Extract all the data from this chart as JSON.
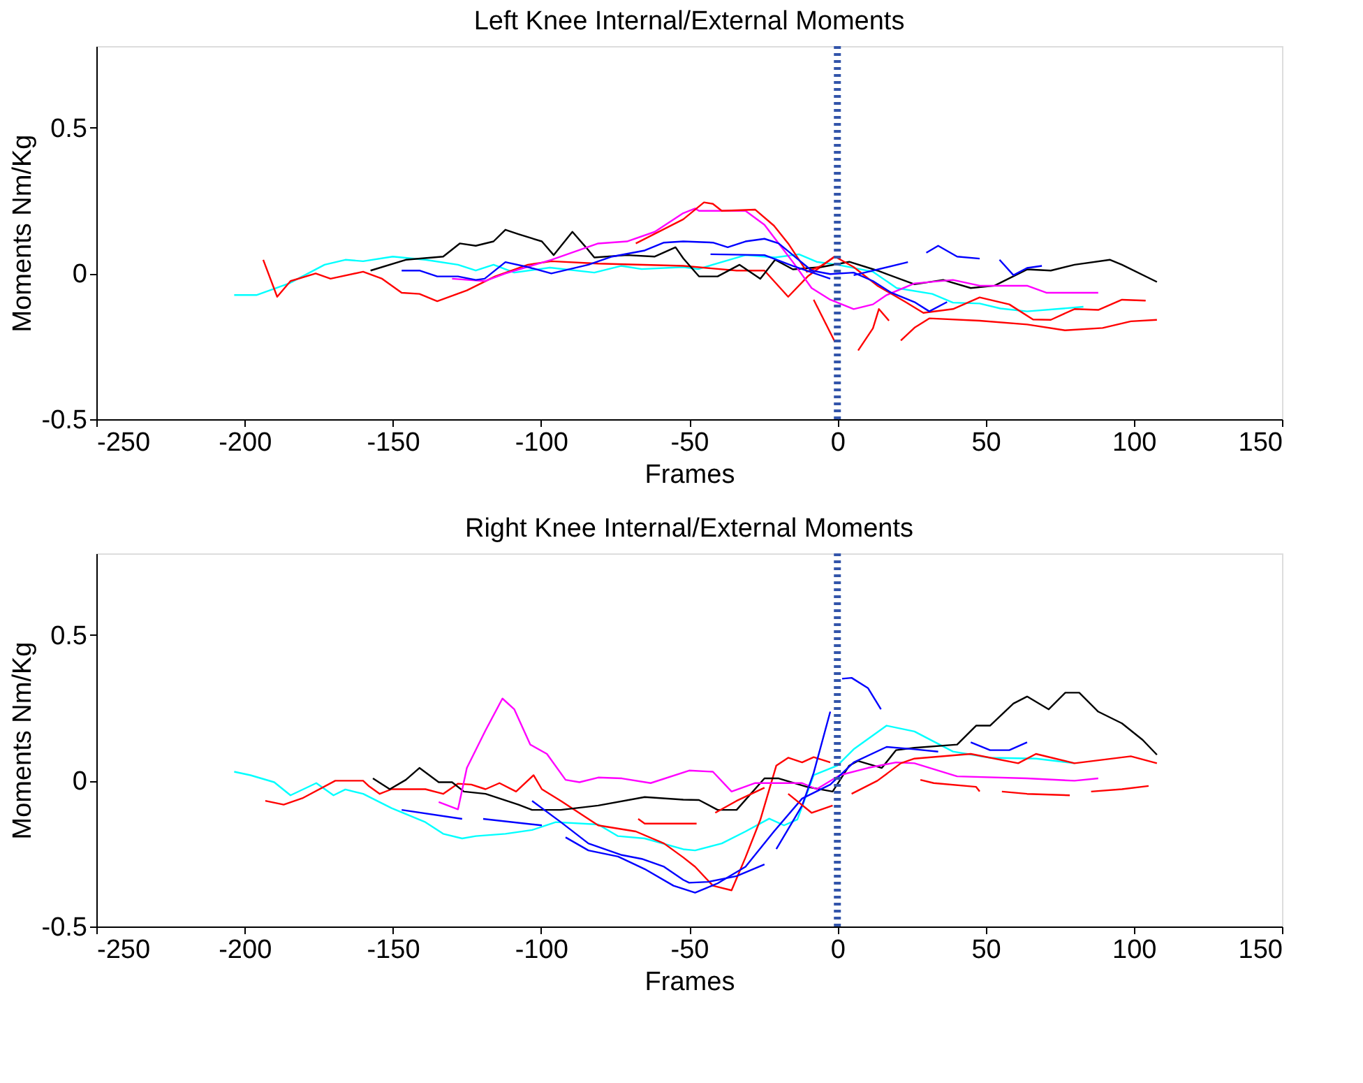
{
  "chart_data": [
    {
      "type": "line",
      "title": "Left Knee   Internal/External Moments",
      "xlabel": "Frames",
      "ylabel": "Moments Nm/Kg",
      "xlim": [
        -250,
        150
      ],
      "xticks": [
        -250,
        -200,
        -150,
        -100,
        -50,
        0,
        50,
        100,
        150
      ],
      "ylim": [
        -0.5,
        0.78
      ],
      "yticks": [
        -0.5,
        0,
        0.5
      ],
      "grid": false,
      "marker": "none",
      "line_style": "solid",
      "ref_lines": [
        {
          "axis": "x",
          "value": 0,
          "color": "#3355aa",
          "line_style": "dotted"
        }
      ],
      "series": [
        {
          "color": "#00ffff",
          "x": [
            -203.5,
            -196,
            -185,
            -173,
            -166,
            -160,
            -150,
            -139,
            -128,
            -122,
            -116,
            -109,
            -97,
            -82,
            -73,
            -66,
            -52,
            -47,
            -31,
            -21,
            -13,
            -7,
            0,
            12,
            20,
            32,
            39,
            48,
            55,
            64,
            74,
            83
          ],
          "values": [
            -0.074,
            -0.074,
            -0.034,
            0.03,
            0.047,
            0.042,
            0.058,
            0.047,
            0.03,
            0.01,
            0.03,
            0.003,
            0.02,
            0.003,
            0.026,
            0.015,
            0.022,
            0.015,
            0.063,
            0.055,
            0.066,
            0.04,
            0.03,
            0.006,
            -0.05,
            -0.07,
            -0.1,
            -0.103,
            -0.12,
            -0.13,
            -0.122,
            -0.114
          ]
        },
        {
          "color": "#ff0000",
          "x": [
            -193.7,
            -189,
            -184.5,
            -176,
            -171,
            -160,
            -153.6,
            -147,
            -141,
            -135,
            -125,
            -115.5,
            -104.4,
            -96.5,
            -80.7,
            -52,
            -34,
            -24.6,
            -16.6,
            -10,
            -1
          ],
          "values": [
            0.047,
            -0.08,
            -0.026,
            0,
            -0.018,
            0.006,
            -0.018,
            -0.066,
            -0.07,
            -0.095,
            -0.058,
            -0.01,
            0.03,
            0.042,
            0.034,
            0.026,
            0.01,
            0.01,
            -0.08,
            -0.01,
            0.058
          ]
        },
        {
          "color": "#000000",
          "x": [
            -157.5,
            -145.6,
            -133,
            -127.4,
            -122,
            -116,
            -112,
            -107.6,
            -99.7,
            -95.7,
            -89.4,
            -84.6,
            -82,
            -71,
            -61.6,
            -54.6,
            -52,
            -46.7,
            -40.4,
            -33,
            -26,
            -21,
            -15,
            -5.5,
            4,
            13.5,
            26,
            35.7,
            45,
            53,
            64,
            72,
            80,
            92,
            96,
            107.8
          ],
          "values": [
            0.01,
            0.047,
            0.058,
            0.103,
            0.095,
            0.11,
            0.15,
            0.135,
            0.11,
            0.063,
            0.143,
            0.087,
            0.055,
            0.063,
            0.058,
            0.09,
            0.052,
            -0.01,
            -0.01,
            0.03,
            -0.018,
            0.047,
            0.014,
            0.022,
            0.04,
            0.01,
            -0.037,
            -0.022,
            -0.05,
            -0.042,
            0.014,
            0.01,
            0.03,
            0.047,
            0.03,
            -0.029
          ]
        },
        {
          "color": "#ff00ff",
          "x": [
            -130,
            -119,
            -112,
            -96.5,
            -80.7,
            -71,
            -61.6,
            -52,
            -48,
            -46.7,
            -31,
            -24.6,
            -19.8,
            -15,
            -8.7,
            -2.4,
            5.5,
            12,
            16.6,
            26,
            39,
            48,
            64,
            70.5,
            88
          ],
          "values": [
            -0.018,
            -0.026,
            0,
            0.047,
            0.103,
            0.11,
            0.143,
            0.207,
            0.223,
            0.215,
            0.215,
            0.167,
            0.103,
            0.039,
            -0.05,
            -0.09,
            -0.122,
            -0.106,
            -0.074,
            -0.034,
            -0.022,
            -0.042,
            -0.042,
            -0.066,
            -0.066
          ]
        },
        {
          "color": "#ff0000",
          "x": [
            -68,
            -52,
            -45,
            -42,
            -39,
            -27.7,
            -21.4,
            -16.6,
            -10.3,
            -5.5,
            -0.8,
            5.5,
            13.5,
            23,
            29,
            39,
            48,
            58,
            66,
            72,
            80,
            88,
            96,
            104
          ],
          "values": [
            0.103,
            0.186,
            0.244,
            0.239,
            0.215,
            0.219,
            0.164,
            0.103,
            0.006,
            0.026,
            0.058,
            0.022,
            -0.042,
            -0.098,
            -0.135,
            -0.122,
            -0.082,
            -0.106,
            -0.158,
            -0.159,
            -0.122,
            -0.125,
            -0.09,
            -0.093
          ]
        },
        {
          "color": "#ff0000",
          "x": [
            21.4,
            26,
            31,
            48,
            64,
            76.8,
            89.5,
            99,
            107.8
          ],
          "values": [
            -0.23,
            -0.186,
            -0.154,
            -0.162,
            -0.175,
            -0.195,
            -0.187,
            -0.164,
            -0.159
          ]
        },
        {
          "color": "#ff0000",
          "x": [
            -8,
            -0.8
          ],
          "values": [
            -0.09,
            -0.235
          ]
        },
        {
          "color": "#ff0000",
          "x": [
            7,
            12,
            14,
            17.4
          ],
          "values": [
            -0.264,
            -0.188,
            -0.122,
            -0.162
          ]
        },
        {
          "color": "#0000ff",
          "x": [
            -147,
            -141,
            -135,
            -128,
            -122,
            -119,
            -112,
            -104.4,
            -96.5,
            -84,
            -76,
            -65,
            -58.5,
            -52,
            -42,
            -37,
            -31,
            -24.6,
            -19.8,
            -15,
            -8.7,
            -2.4,
            5.5,
            12,
            18.2,
            26,
            31,
            37
          ],
          "values": [
            0.01,
            0.01,
            -0.01,
            -0.01,
            -0.022,
            -0.018,
            0.039,
            0.022,
            0,
            0.03,
            0.058,
            0.079,
            0.106,
            0.11,
            0.106,
            0.09,
            0.11,
            0.119,
            0.103,
            0.063,
            0.01,
            -0.002,
            0.003,
            -0.026,
            -0.066,
            -0.098,
            -0.13,
            -0.098
          ]
        },
        {
          "color": "#0000ff",
          "x": [
            -42.8,
            -24.6,
            -15,
            -2.4
          ],
          "values": [
            0.066,
            0.063,
            0.026,
            -0.018
          ]
        },
        {
          "color": "#0000ff",
          "x": [
            5.5,
            23.8
          ],
          "values": [
            -0.006,
            0.039
          ]
        },
        {
          "color": "#0000ff",
          "x": [
            30,
            34,
            40.4,
            48
          ],
          "values": [
            0.071,
            0.095,
            0.058,
            0.051
          ]
        },
        {
          "color": "#0000ff",
          "x": [
            54.7,
            59.4,
            64,
            69
          ],
          "values": [
            0.047,
            -0.006,
            0.019,
            0.026
          ]
        }
      ]
    },
    {
      "type": "line",
      "title": "Right Knee   Internal/External Moments",
      "xlabel": "Frames",
      "ylabel": "Moments Nm/Kg",
      "xlim": [
        -250,
        150
      ],
      "xticks": [
        -250,
        -200,
        -150,
        -100,
        -50,
        0,
        50,
        100,
        150
      ],
      "ylim": [
        -0.5,
        0.78
      ],
      "yticks": [
        -0.5,
        0,
        0.5
      ],
      "grid": false,
      "marker": "none",
      "line_style": "solid",
      "ref_lines": [
        {
          "axis": "x",
          "value": 0,
          "color": "#3355aa",
          "line_style": "dotted"
        }
      ],
      "series": [
        {
          "color": "#00ffff",
          "x": [
            -203.5,
            -198,
            -190,
            -184.5,
            -175.8,
            -170,
            -166,
            -160,
            -150.4,
            -139,
            -133,
            -126.6,
            -122,
            -112,
            -103,
            -95,
            -80.7,
            -74,
            -65,
            -52,
            -48,
            -39,
            -31,
            -23,
            -18,
            -13.5,
            -8,
            0,
            5.5,
            16.6,
            26,
            39,
            51.5,
            67,
            80
          ],
          "values": [
            0.031,
            0.019,
            -0.005,
            -0.05,
            -0.008,
            -0.05,
            -0.03,
            -0.045,
            -0.094,
            -0.142,
            -0.182,
            -0.198,
            -0.19,
            -0.182,
            -0.169,
            -0.142,
            -0.15,
            -0.19,
            -0.198,
            -0.235,
            -0.239,
            -0.215,
            -0.174,
            -0.13,
            -0.153,
            -0.133,
            0.019,
            0.052,
            0.108,
            0.189,
            0.169,
            0.1,
            0.079,
            0.076,
            0.06
          ]
        },
        {
          "color": "#ff0000",
          "x": [
            -193,
            -186.8,
            -180.5,
            -169.4,
            -160,
            -158,
            -154.4,
            -150.4,
            -139,
            -133,
            -128,
            -123.5,
            -118.7,
            -114,
            -108.4,
            -102.5,
            -99.7,
            -93.3,
            -80.7,
            -68,
            -58.5,
            -52,
            -48,
            -42,
            -35.7,
            -31,
            -26,
            -20.6,
            -16.6,
            -11.9,
            -8,
            -2.4
          ],
          "values": [
            -0.069,
            -0.082,
            -0.06,
            0,
            0,
            -0.019,
            -0.045,
            -0.029,
            -0.029,
            -0.045,
            -0.01,
            -0.013,
            -0.029,
            -0.008,
            -0.037,
            0.019,
            -0.029,
            -0.069,
            -0.153,
            -0.174,
            -0.215,
            -0.263,
            -0.295,
            -0.36,
            -0.376,
            -0.263,
            -0.134,
            0.052,
            0.079,
            0.063,
            0.081,
            0.063
          ]
        },
        {
          "color": "#000000",
          "x": [
            -156.7,
            -151,
            -145.6,
            -141,
            -134.5,
            -130,
            -126,
            -118.7,
            -107.6,
            -103,
            -93.3,
            -80.7,
            -65,
            -52,
            -46.7,
            -40.4,
            -34,
            -24.6,
            -19.8,
            -10.3,
            -1.6,
            4,
            7,
            15,
            19.8,
            26,
            40.4,
            46.8,
            51.5,
            59.4,
            64,
            71.3,
            76.9,
            81.6,
            88,
            96,
            103,
            107.8
          ],
          "values": [
            0.008,
            -0.029,
            0.003,
            0.044,
            -0.005,
            -0.005,
            -0.037,
            -0.045,
            -0.082,
            -0.1,
            -0.1,
            -0.085,
            -0.056,
            -0.065,
            -0.066,
            -0.1,
            -0.1,
            0.008,
            0.008,
            -0.021,
            -0.037,
            0.052,
            0.068,
            0.044,
            0.105,
            0.113,
            0.124,
            0.189,
            0.189,
            0.265,
            0.289,
            0.245,
            0.302,
            0.302,
            0.237,
            0.197,
            0.14,
            0.089
          ]
        },
        {
          "color": "#ff00ff",
          "x": [
            -134.5,
            -128,
            -125,
            -118.7,
            -113,
            -109,
            -103.6,
            -98,
            -91.7,
            -87,
            -80.7,
            -72.7,
            -63,
            -50,
            -42,
            -35.7,
            -27.7,
            -11.9,
            -7,
            0.8,
            10.3,
            19.8,
            26,
            40.4,
            64,
            80,
            88
          ],
          "values": [
            -0.073,
            -0.098,
            0.044,
            0.173,
            0.282,
            0.245,
            0.124,
            0.092,
            0.003,
            -0.005,
            0.011,
            0.008,
            -0.008,
            0.035,
            0.031,
            -0.037,
            -0.008,
            -0.008,
            -0.029,
            0.019,
            0.044,
            0.063,
            0.06,
            0.015,
            0.008,
            0,
            0.008
          ]
        },
        {
          "color": "#0000ff",
          "x": [
            -91.7,
            -84,
            -74,
            -65,
            -55.3,
            -48,
            -40.4,
            -31,
            -21.4,
            -11.9,
            -2.4,
            5.5,
            16.6,
            26,
            34
          ],
          "values": [
            -0.194,
            -0.239,
            -0.26,
            -0.303,
            -0.36,
            -0.384,
            -0.352,
            -0.295,
            -0.174,
            -0.061,
            -0.013,
            0.063,
            0.116,
            0.108,
            0.1
          ]
        },
        {
          "color": "#0000ff",
          "x": [
            -103,
            -93.3,
            -84,
            -72.7,
            -66,
            -58.5,
            -52,
            -50,
            -43.6,
            -34,
            -24.6
          ],
          "values": [
            -0.069,
            -0.142,
            -0.215,
            -0.255,
            -0.268,
            -0.295,
            -0.34,
            -0.35,
            -0.347,
            -0.327,
            -0.287
          ]
        },
        {
          "color": "#0000ff",
          "x": [
            -147,
            -126.6
          ],
          "values": [
            -0.1,
            -0.131
          ]
        },
        {
          "color": "#0000ff",
          "x": [
            -119.5,
            -99.7
          ],
          "values": [
            -0.131,
            -0.153
          ]
        },
        {
          "color": "#0000ff",
          "x": [
            -20.6,
            -16.6,
            -11.9,
            -8,
            -2.4
          ],
          "values": [
            -0.234,
            -0.166,
            -0.085,
            0.027,
            0.237
          ]
        },
        {
          "color": "#0000ff",
          "x": [
            1.6,
            4.8,
            10.3,
            14.7
          ],
          "values": [
            0.35,
            0.353,
            0.318,
            0.245
          ]
        },
        {
          "color": "#0000ff",
          "x": [
            45,
            51.5,
            58,
            64
          ],
          "values": [
            0.132,
            0.105,
            0.105,
            0.132
          ]
        },
        {
          "color": "#ff0000",
          "x": [
            -67.2,
            -65,
            -62.6,
            -47.5
          ],
          "values": [
            -0.131,
            -0.147,
            -0.147,
            -0.147
          ]
        },
        {
          "color": "#ff0000",
          "x": [
            -41.2,
            -34,
            -24.6
          ],
          "values": [
            -0.11,
            -0.069,
            -0.024
          ]
        },
        {
          "color": "#ff0000",
          "x": [
            -16.6,
            -8.7,
            -1.6
          ],
          "values": [
            -0.045,
            -0.11,
            -0.085
          ]
        },
        {
          "color": "#ff0000",
          "x": [
            4.8,
            13.5,
            21.4,
            26,
            45,
            61,
            67,
            80,
            99,
            107.8
          ],
          "values": [
            -0.045,
            0,
            0.06,
            0.076,
            0.092,
            0.06,
            0.092,
            0.06,
            0.084,
            0.06
          ]
        },
        {
          "color": "#ff0000",
          "x": [
            28,
            32.5,
            46.8,
            48
          ],
          "values": [
            0.003,
            -0.008,
            -0.021,
            -0.037
          ]
        },
        {
          "color": "#ff0000",
          "x": [
            55.5,
            64,
            78.4
          ],
          "values": [
            -0.037,
            -0.045,
            -0.05
          ]
        },
        {
          "color": "#ff0000",
          "x": [
            85.6,
            96,
            105
          ],
          "values": [
            -0.037,
            -0.029,
            -0.018
          ]
        }
      ]
    }
  ]
}
